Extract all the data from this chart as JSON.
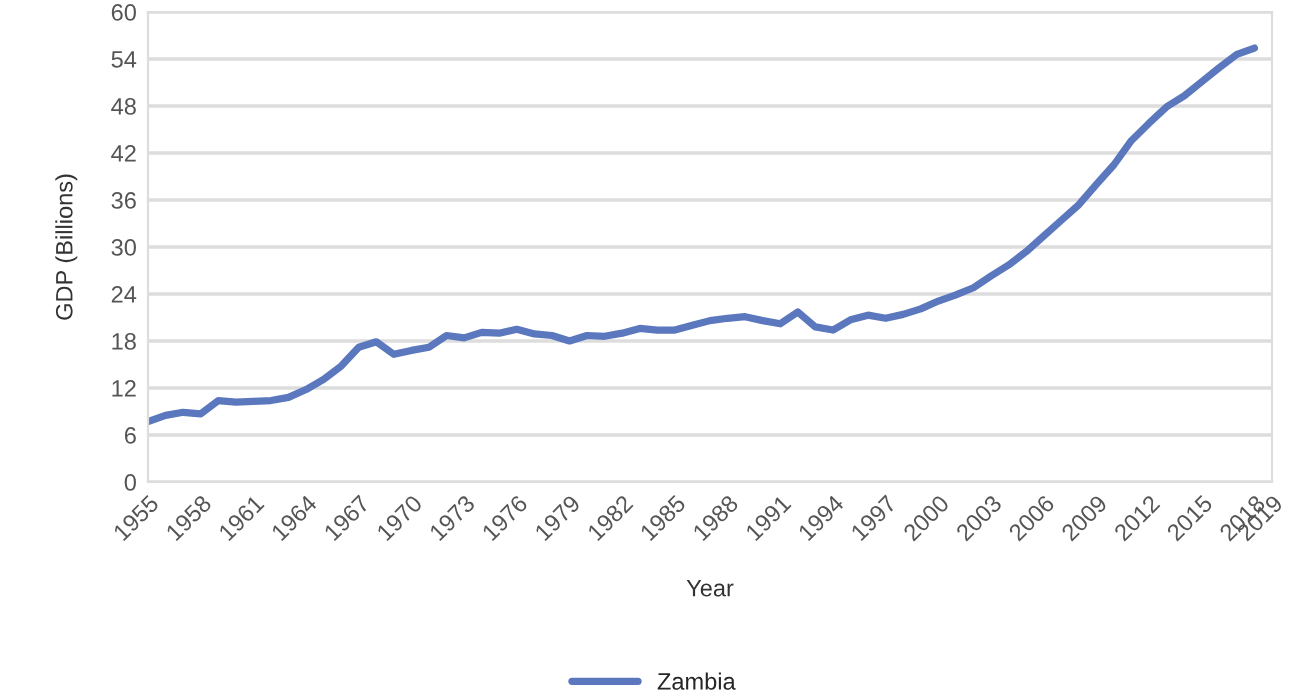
{
  "chart_data": {
    "type": "line",
    "xlabel": "Year",
    "ylabel": "GDP (Billions)",
    "x": [
      1955,
      1956,
      1957,
      1958,
      1959,
      1960,
      1961,
      1962,
      1963,
      1964,
      1965,
      1966,
      1967,
      1968,
      1969,
      1970,
      1971,
      1972,
      1973,
      1974,
      1975,
      1976,
      1977,
      1978,
      1979,
      1980,
      1981,
      1982,
      1983,
      1984,
      1985,
      1986,
      1987,
      1988,
      1989,
      1990,
      1991,
      1992,
      1993,
      1994,
      1995,
      1996,
      1997,
      1998,
      1999,
      2000,
      2001,
      2002,
      2003,
      2004,
      2005,
      2006,
      2007,
      2008,
      2009,
      2010,
      2011,
      2012,
      2013,
      2014,
      2015,
      2016,
      2017,
      2018
    ],
    "series": [
      {
        "name": "Zambia",
        "color": "#5b78be",
        "values": [
          7.7,
          8.5,
          8.9,
          8.7,
          10.4,
          10.2,
          10.3,
          10.4,
          10.8,
          11.8,
          13.1,
          14.8,
          17.2,
          17.9,
          16.3,
          16.8,
          17.2,
          18.7,
          18.4,
          19.1,
          19.0,
          19.5,
          18.9,
          18.7,
          18.0,
          18.7,
          18.6,
          19.0,
          19.6,
          19.4,
          19.4,
          20.0,
          20.6,
          20.9,
          21.1,
          20.6,
          20.2,
          21.7,
          19.8,
          19.4,
          20.7,
          21.3,
          20.9,
          21.4,
          22.1,
          23.1,
          23.9,
          24.8,
          26.3,
          27.7,
          29.4,
          31.4,
          33.4,
          35.4,
          38.0,
          40.5,
          43.6,
          45.8,
          47.9,
          49.3,
          51.1,
          52.9,
          54.6,
          55.4
        ]
      }
    ],
    "xlim": [
      1955,
      2019
    ],
    "xticks": [
      1955,
      1958,
      1961,
      1964,
      1967,
      1970,
      1973,
      1976,
      1979,
      1982,
      1985,
      1988,
      1991,
      1994,
      1997,
      2000,
      2003,
      2006,
      2009,
      2012,
      2015,
      2018,
      2019
    ],
    "ylim": [
      0,
      60
    ],
    "yticks": [
      0,
      6,
      12,
      18,
      24,
      30,
      36,
      42,
      48,
      54,
      60
    ],
    "grid": "y",
    "legend": "bottom",
    "marker": "none",
    "line_style": "solid"
  }
}
